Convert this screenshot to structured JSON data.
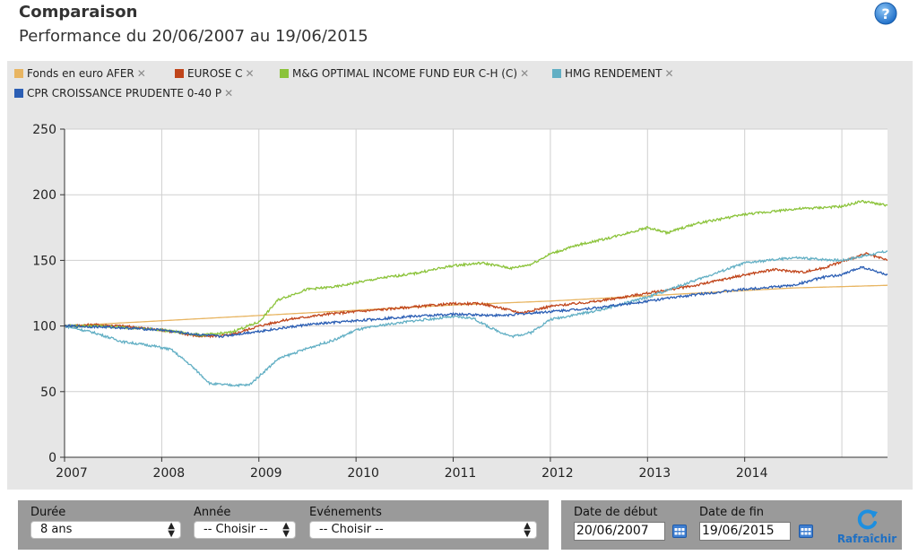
{
  "header": {
    "title": "Comparaison",
    "subtitle": "Performance du 20/06/2007 au 19/06/2015"
  },
  "legend": [
    {
      "label": "Fonds en euro AFER",
      "color": "#e8b562"
    },
    {
      "label": "EUROSE C",
      "color": "#c0451b"
    },
    {
      "label": "M&G OPTIMAL INCOME FUND EUR C-H (C)",
      "color": "#8bc33a"
    },
    {
      "label": "HMG RENDEMENT",
      "color": "#62afc4"
    },
    {
      "label": "CPR CROISSANCE PRUDENTE 0-40 P",
      "color": "#2b5eb4"
    }
  ],
  "chart_data": {
    "type": "line",
    "x_ticks": [
      "2007",
      "2008",
      "2009",
      "2010",
      "2011",
      "2012",
      "2013",
      "2014"
    ],
    "y_ticks": [
      0,
      50,
      100,
      150,
      200,
      250
    ],
    "xlim": [
      2007.0,
      2015.47
    ],
    "ylim": [
      0,
      250
    ],
    "grid": true,
    "legend_position": "top",
    "series": [
      {
        "name": "Fonds en euro AFER",
        "color": "#e8b562",
        "x": [
          2007.0,
          2008.0,
          2009.0,
          2010.0,
          2011.0,
          2012.0,
          2013.0,
          2014.0,
          2014.5,
          2015.0,
          2015.47
        ],
        "y": [
          100,
          104,
          108,
          112,
          116,
          119,
          123,
          127,
          129,
          130,
          131
        ]
      },
      {
        "name": "EUROSE C",
        "color": "#c0451b",
        "x": [
          2007.0,
          2007.3,
          2007.6,
          2008.0,
          2008.4,
          2008.7,
          2009.0,
          2009.3,
          2009.7,
          2010.0,
          2010.5,
          2011.0,
          2011.3,
          2011.7,
          2012.0,
          2012.5,
          2013.0,
          2013.5,
          2014.0,
          2014.3,
          2014.6,
          2014.8,
          2015.0,
          2015.25,
          2015.47
        ],
        "y": [
          100,
          101,
          100,
          97,
          92,
          93,
          100,
          105,
          109,
          111,
          114,
          117,
          117,
          110,
          115,
          119,
          125,
          131,
          139,
          143,
          141,
          144,
          149,
          155,
          150
        ]
      },
      {
        "name": "M&G OPTIMAL INCOME FUND EUR C-H (C)",
        "color": "#8bc33a",
        "x": [
          2007.0,
          2007.3,
          2007.6,
          2008.0,
          2008.4,
          2008.7,
          2009.0,
          2009.2,
          2009.5,
          2009.8,
          2010.0,
          2010.3,
          2010.6,
          2011.0,
          2011.3,
          2011.6,
          2011.8,
          2012.0,
          2012.3,
          2012.6,
          2013.0,
          2013.2,
          2013.5,
          2014.0,
          2014.5,
          2015.0,
          2015.2,
          2015.47
        ],
        "y": [
          100,
          100,
          99,
          97,
          93,
          95,
          103,
          120,
          128,
          130,
          133,
          137,
          140,
          146,
          148,
          144,
          147,
          155,
          162,
          167,
          175,
          171,
          178,
          185,
          189,
          191,
          195,
          192
        ]
      },
      {
        "name": "HMG RENDEMENT",
        "color": "#62afc4",
        "x": [
          2007.0,
          2007.3,
          2007.6,
          2007.9,
          2008.1,
          2008.3,
          2008.5,
          2008.7,
          2008.9,
          2009.2,
          2009.5,
          2009.8,
          2010.0,
          2010.3,
          2010.6,
          2011.0,
          2011.2,
          2011.4,
          2011.6,
          2011.8,
          2012.0,
          2012.5,
          2013.0,
          2013.5,
          2014.0,
          2014.5,
          2015.0,
          2015.47
        ],
        "y": [
          100,
          95,
          88,
          85,
          82,
          70,
          56,
          55,
          55,
          75,
          83,
          90,
          97,
          101,
          104,
          107,
          106,
          98,
          92,
          95,
          105,
          112,
          122,
          135,
          148,
          152,
          150,
          157
        ]
      },
      {
        "name": "CPR CROISSANCE PRUDENTE 0-40 P",
        "color": "#2b5eb4",
        "x": [
          2007.0,
          2007.5,
          2008.0,
          2008.3,
          2008.6,
          2009.0,
          2009.5,
          2010.0,
          2010.5,
          2011.0,
          2011.5,
          2012.0,
          2012.5,
          2013.0,
          2013.5,
          2014.0,
          2014.5,
          2014.8,
          2015.0,
          2015.2,
          2015.47
        ],
        "y": [
          100,
          99,
          97,
          94,
          92,
          96,
          101,
          104,
          107,
          109,
          108,
          111,
          114,
          119,
          124,
          128,
          131,
          137,
          139,
          145,
          139
        ]
      }
    ]
  },
  "controls": {
    "duree_label": "Durée",
    "duree_value": "8 ans",
    "annee_label": "Année",
    "annee_value": "-- Choisir --",
    "evenements_label": "Evénements",
    "evenements_value": "-- Choisir --",
    "date_debut_label": "Date de début",
    "date_debut_value": "20/06/2007",
    "date_fin_label": "Date de fin",
    "date_fin_value": "19/06/2015",
    "refresh_label": "Rafraîchir"
  }
}
